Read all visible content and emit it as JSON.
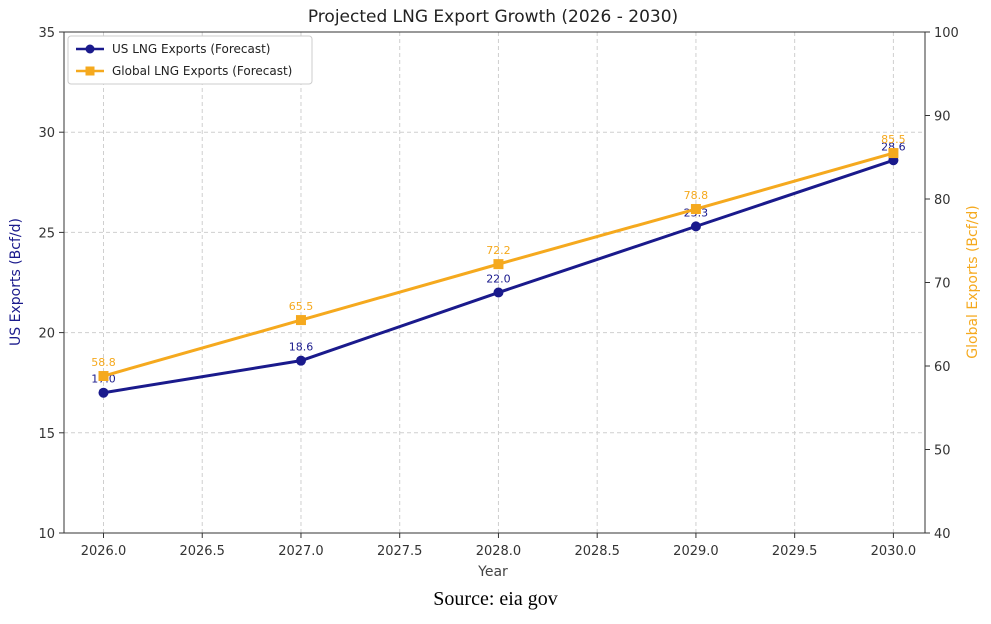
{
  "chart_data": {
    "type": "line",
    "title": "Projected LNG Export Growth (2026 - 2030)",
    "xlabel": "Year",
    "ylabel_left": "US Exports (Bcf/d)",
    "ylabel_right": "Global Exports (Bcf/d)",
    "x": [
      2026.0,
      2027.0,
      2028.0,
      2029.0,
      2030.0
    ],
    "x_ticks": [
      "2026.0",
      "2026.5",
      "2027.0",
      "2027.5",
      "2028.0",
      "2028.5",
      "2029.0",
      "2029.5",
      "2030.0"
    ],
    "xlim": [
      2025.8,
      2030.16
    ],
    "ylim_left": [
      10,
      35
    ],
    "y_ticks_left": [
      "10",
      "15",
      "20",
      "25",
      "30",
      "35"
    ],
    "ylim_right": [
      40,
      100
    ],
    "y_ticks_right": [
      "40",
      "50",
      "60",
      "70",
      "80",
      "90",
      "100"
    ],
    "grid": true,
    "legend_position": "top-left",
    "series": [
      {
        "name": "US LNG Exports (Forecast)",
        "axis": "left",
        "color": "#1a1a8c",
        "marker": "circle",
        "values": [
          17.0,
          18.6,
          22.0,
          25.3,
          28.6
        ],
        "labels": [
          "17.0",
          "18.6",
          "22.0",
          "25.3",
          "28.6"
        ]
      },
      {
        "name": "Global LNG Exports (Forecast)",
        "axis": "right",
        "color": "#f5a91e",
        "marker": "square",
        "values": [
          58.8,
          65.5,
          72.2,
          78.8,
          85.5
        ],
        "labels": [
          "58.8",
          "65.5",
          "72.2",
          "78.8",
          "85.5"
        ]
      }
    ]
  },
  "source": "Source: eia gov"
}
